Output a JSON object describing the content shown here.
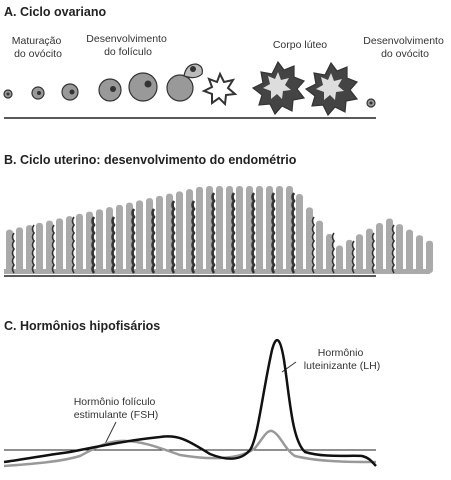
{
  "sections": [
    {
      "title": "A. Ciclo ovariano",
      "labels": [
        {
          "lines": [
            "Maturação",
            "do ovócito"
          ]
        },
        {
          "lines": [
            "Desenvolvimento",
            "do folículo"
          ]
        },
        {
          "lines": [
            "Corpo lúteo"
          ]
        },
        {
          "lines": [
            "Desenvolvimento",
            "do ovócito"
          ]
        }
      ]
    },
    {
      "title": "B. Ciclo uterino: desenvolvimento do endométrio"
    },
    {
      "title": "C. Hormônios hipofisários",
      "labels": [
        {
          "lines": [
            "Hormônio",
            "luteinizante (LH)"
          ]
        },
        {
          "lines": [
            "Hormônio folículo",
            "estimulante (FSH)"
          ]
        }
      ]
    }
  ]
}
